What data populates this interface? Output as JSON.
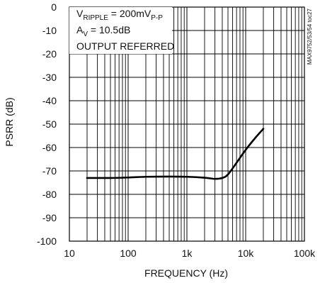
{
  "chart_data": {
    "type": "line",
    "title": "",
    "xlabel": "FREQUENCY (Hz)",
    "ylabel": "PSRR (dB)",
    "x_scale": "log",
    "xlim": [
      10,
      100000
    ],
    "ylim": [
      -100,
      0
    ],
    "x_ticks": [
      10,
      100,
      1000,
      10000,
      100000
    ],
    "x_tick_labels": [
      "10",
      "100",
      "1k",
      "10k",
      "100k"
    ],
    "y_ticks": [
      0,
      -10,
      -20,
      -30,
      -40,
      -50,
      -60,
      -70,
      -80,
      -90,
      -100
    ],
    "y_tick_labels": [
      "0",
      "-10",
      "-20",
      "-30",
      "-40",
      "-50",
      "-60",
      "-70",
      "-80",
      "-90",
      "-100"
    ],
    "grid": true,
    "series": [
      {
        "x": [
          20,
          50,
          100,
          200,
          500,
          1000,
          2000,
          3000,
          4000,
          5000,
          7000,
          10000,
          15000,
          20000
        ],
        "y": [
          -73.0,
          -73.0,
          -72.8,
          -72.5,
          -72.4,
          -72.5,
          -72.9,
          -73.4,
          -73.0,
          -71.5,
          -66.5,
          -61.0,
          -55.5,
          -52.0
        ]
      }
    ],
    "annotations": {
      "line1_main": "V",
      "line1_sub": "RIPPLE",
      "line1_rest": " = 200mV",
      "line1_sub2": "P-P",
      "line2_main": "A",
      "line2_sub": "V",
      "line2_rest": " = 10.5dB",
      "line3": "OUTPUT REFERRED"
    },
    "side_code": "MAX9752/53/54 toc27",
    "colors": {
      "grid": "#000000",
      "line": "#000000",
      "background": "#ffffff"
    }
  }
}
